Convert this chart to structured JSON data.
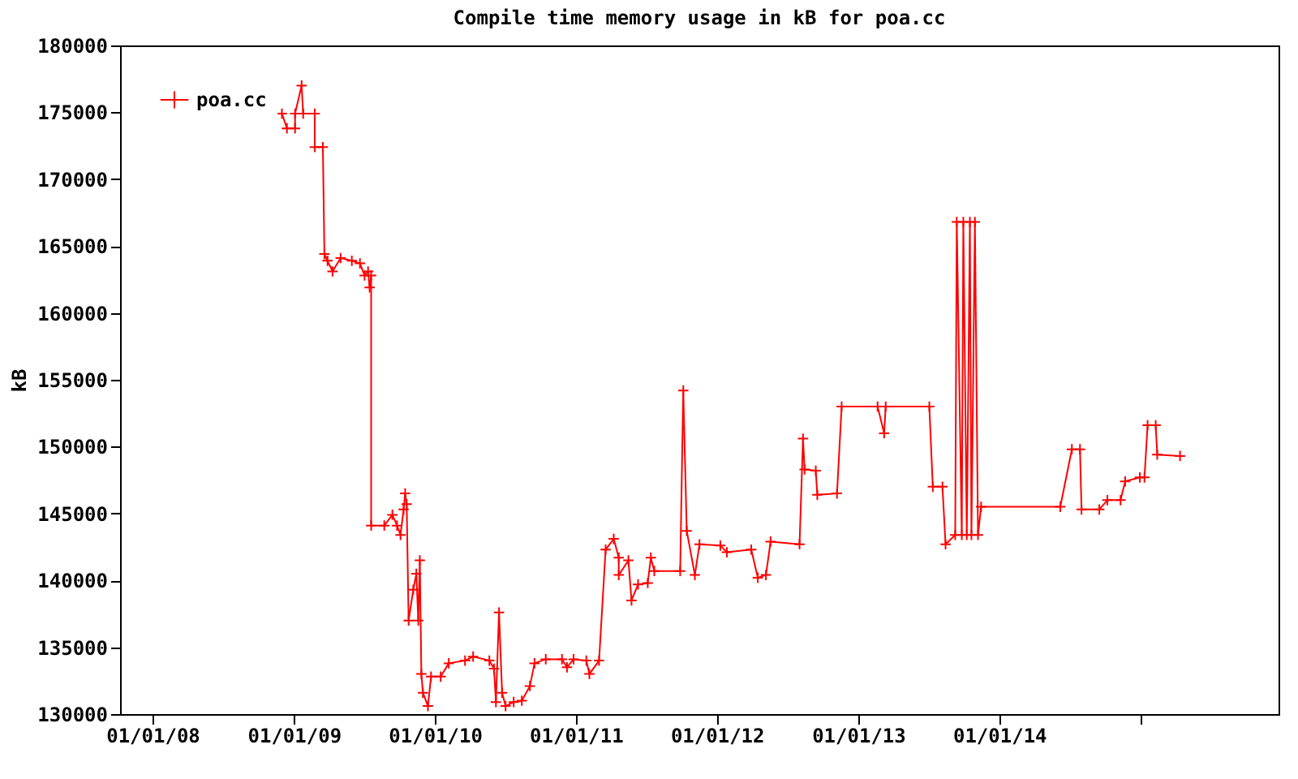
{
  "chart_data": {
    "type": "line",
    "title": "Compile time memory usage in kB for poa.cc",
    "ylabel": "kB",
    "xlim": [
      "2007-10-09",
      "2015-12-25"
    ],
    "xticks": [
      {
        "value": "2008-01-01",
        "label": "01/01/08"
      },
      {
        "value": "2009-01-01",
        "label": "01/01/09"
      },
      {
        "value": "2010-01-01",
        "label": "01/01/10"
      },
      {
        "value": "2011-01-01",
        "label": "01/01/11"
      },
      {
        "value": "2012-01-01",
        "label": "01/01/12"
      },
      {
        "value": "2013-01-01",
        "label": "01/01/13"
      },
      {
        "value": "2014-01-01",
        "label": "01/01/14"
      },
      {
        "value": "2015-01-01",
        "label": null
      }
    ],
    "ylim": [
      130000,
      180000
    ],
    "yticks": [
      130000,
      135000,
      140000,
      145000,
      150000,
      155000,
      160000,
      165000,
      170000,
      175000,
      180000
    ],
    "grid": false,
    "legend": "top left",
    "marker": "cross",
    "line_style": "solid",
    "x": [
      "2008-12-01",
      "2008-12-14",
      "2009-01-04",
      "2009-01-04",
      "2009-01-21",
      "2009-01-25",
      "2009-02-24",
      "2009-02-24",
      "2009-03-17",
      "2009-03-21",
      "2009-03-29",
      "2009-04-11",
      "2009-05-02",
      "2009-05-31",
      "2009-06-21",
      "2009-07-03",
      "2009-07-12",
      "2009-07-16",
      "2009-07-20",
      "2009-07-20",
      "2009-08-23",
      "2009-09-13",
      "2009-09-25",
      "2009-10-04",
      "2009-10-12",
      "2009-10-16",
      "2009-10-20",
      "2009-10-25",
      "2009-11-06",
      "2009-11-14",
      "2009-11-19",
      "2009-11-23",
      "2009-11-27",
      "2009-12-01",
      "2009-12-14",
      "2009-12-22",
      "2010-01-16",
      "2010-02-06",
      "2010-03-20",
      "2010-04-10",
      "2010-05-22",
      "2010-06-03",
      "2010-06-08",
      "2010-06-16",
      "2010-06-24",
      "2010-07-03",
      "2010-07-24",
      "2010-08-14",
      "2010-09-04",
      "2010-09-16",
      "2010-10-15",
      "2010-11-26",
      "2010-12-09",
      "2010-12-26",
      "2011-01-28",
      "2011-02-05",
      "2011-03-02",
      "2011-03-19",
      "2011-04-09",
      "2011-04-22",
      "2011-04-22",
      "2011-05-17",
      "2011-05-25",
      "2011-06-11",
      "2011-07-06",
      "2011-07-14",
      "2011-07-23",
      "2011-09-28",
      "2011-10-06",
      "2011-10-15",
      "2011-11-05",
      "2011-11-17",
      "2012-01-10",
      "2012-01-27",
      "2012-03-30",
      "2012-04-16",
      "2012-05-07",
      "2012-05-19",
      "2012-08-02",
      "2012-08-11",
      "2012-08-15",
      "2012-09-13",
      "2012-09-17",
      "2012-11-07",
      "2012-11-19",
      "2013-02-20",
      "2013-03-09",
      "2013-03-13",
      "2013-07-04",
      "2013-07-13",
      "2013-08-07",
      "2013-08-15",
      "2013-09-09",
      "2013-09-13",
      "2013-09-26",
      "2013-09-30",
      "2013-10-09",
      "2013-10-17",
      "2013-10-21",
      "2013-10-30",
      "2013-11-07",
      "2013-11-15",
      "2014-06-08",
      "2014-07-08",
      "2014-07-29",
      "2014-08-02",
      "2014-09-17",
      "2014-10-08",
      "2014-11-11",
      "2014-11-23",
      "2014-12-31",
      "2015-01-12",
      "2015-01-20",
      "2015-02-10",
      "2015-02-14",
      "2015-04-14"
    ],
    "series": [
      {
        "name": "poa.cc",
        "color": "#ff0000",
        "values": [
          174900,
          173800,
          173800,
          174900,
          177000,
          174900,
          174900,
          172400,
          172400,
          164400,
          163900,
          163100,
          164100,
          163900,
          163700,
          162800,
          163100,
          161900,
          162800,
          144100,
          144100,
          144900,
          144100,
          143400,
          145300,
          146500,
          145700,
          137000,
          139300,
          140500,
          137000,
          141500,
          133000,
          131600,
          130600,
          132800,
          132800,
          133800,
          134000,
          134300,
          134000,
          133400,
          130900,
          137600,
          131600,
          130600,
          130900,
          131000,
          132100,
          133800,
          134100,
          134100,
          133500,
          134100,
          134000,
          133000,
          134000,
          142300,
          143100,
          141700,
          140400,
          141500,
          138500,
          139700,
          139800,
          141700,
          140700,
          140700,
          154200,
          143700,
          140400,
          142700,
          142600,
          142100,
          142300,
          140200,
          140400,
          142900,
          142700,
          150600,
          148300,
          148200,
          146400,
          146500,
          153000,
          153000,
          151000,
          153000,
          153000,
          147000,
          147000,
          142700,
          143400,
          166800,
          143400,
          166800,
          143400,
          166800,
          143400,
          166800,
          143400,
          145500,
          145500,
          149800,
          149800,
          145300,
          145300,
          146000,
          146000,
          147400,
          147700,
          147700,
          151600,
          151600,
          149400,
          149300
        ]
      }
    ]
  }
}
